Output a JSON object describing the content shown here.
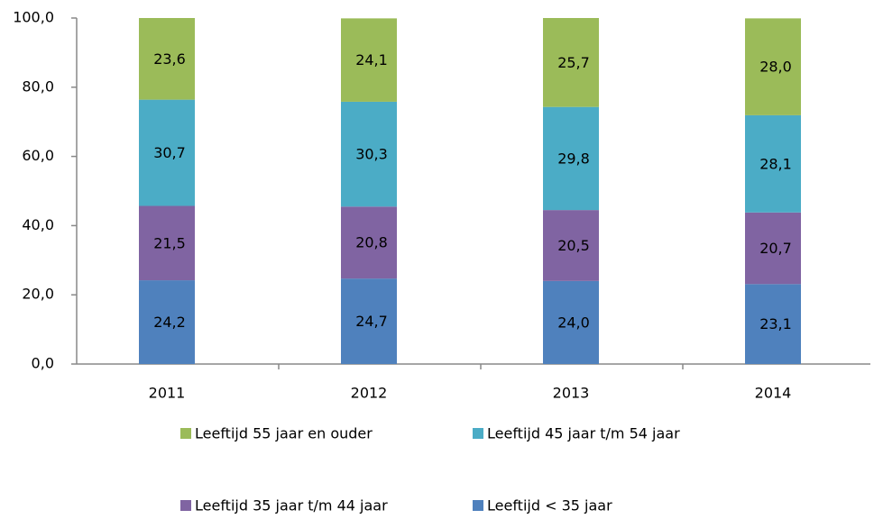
{
  "chart_data": {
    "type": "stacked_bar",
    "categories": [
      "2011",
      "2012",
      "2013",
      "2014"
    ],
    "series": [
      {
        "name": "Leeftijd < 35 jaar",
        "color": "#4f81bd",
        "values": [
          24.2,
          24.7,
          24.0,
          23.1
        ],
        "value_labels": [
          "24,2",
          "24,7",
          "24,0",
          "23,1"
        ]
      },
      {
        "name": "Leeftijd 35 jaar t/m 44 jaar",
        "color": "#8064a2",
        "values": [
          21.5,
          20.8,
          20.5,
          20.7
        ],
        "value_labels": [
          "21,5",
          "20,8",
          "20,5",
          "20,7"
        ]
      },
      {
        "name": "Leeftijd 45 jaar t/m 54 jaar",
        "color": "#4bacc6",
        "values": [
          30.7,
          30.3,
          29.8,
          28.1
        ],
        "value_labels": [
          "30,7",
          "30,3",
          "29,8",
          "28,1"
        ]
      },
      {
        "name": "Leeftijd 55 jaar en ouder",
        "color": "#9bbb59",
        "values": [
          23.6,
          24.1,
          25.7,
          28.0
        ],
        "value_labels": [
          "23,6",
          "24,1",
          "25,7",
          "28,0"
        ]
      }
    ],
    "ylim": [
      0,
      100
    ],
    "yticks": [
      {
        "value": 0,
        "label": "0,0"
      },
      {
        "value": 20,
        "label": "20,0"
      },
      {
        "value": 40,
        "label": "40,0"
      },
      {
        "value": 60,
        "label": "60,0"
      },
      {
        "value": 80,
        "label": "80,0"
      },
      {
        "value": 100,
        "label": "100,0"
      }
    ],
    "grid": false
  }
}
